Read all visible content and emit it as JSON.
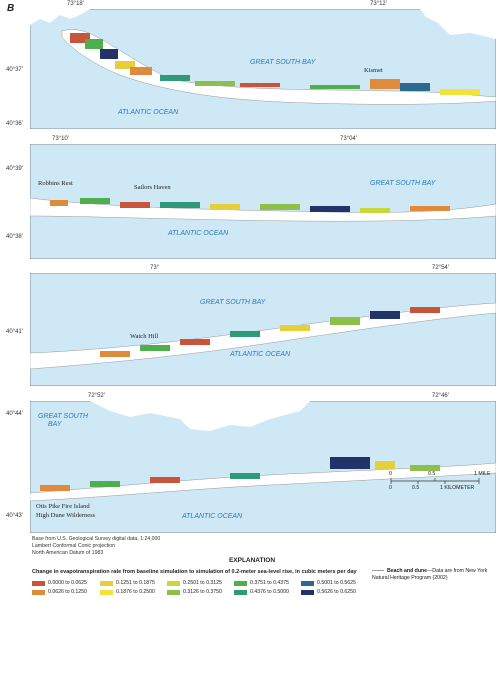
{
  "panel_letter": "B",
  "maps": [
    {
      "top_ticks": [
        "73°18'",
        "73°12'"
      ],
      "left_ticks": [
        "40°37'",
        "40°36'"
      ],
      "water_labels": [
        "GREAT SOUTH BAY",
        "ATLANTIC OCEAN"
      ],
      "places": [
        "Kismet"
      ]
    },
    {
      "top_ticks": [
        "73°10'",
        "73°04'"
      ],
      "left_ticks": [
        "40°39'",
        "40°38'"
      ],
      "water_labels": [
        "GREAT SOUTH BAY",
        "ATLANTIC OCEAN"
      ],
      "places": [
        "Robbins Rest",
        "Sailors Haven"
      ]
    },
    {
      "top_ticks": [
        "73°",
        "72°54'"
      ],
      "left_ticks": [
        "40°41'"
      ],
      "water_labels": [
        "GREAT SOUTH BAY",
        "ATLANTIC OCEAN"
      ],
      "places": [
        "Watch Hill"
      ]
    },
    {
      "top_ticks": [
        "72°52'",
        "72°46'"
      ],
      "left_ticks": [
        "40°44'",
        "40°43'"
      ],
      "water_labels": [
        "GREAT SOUTH",
        "BAY",
        "ATLANTIC OCEAN"
      ],
      "places": [
        "Otis Pike Fire Island",
        "High Dune Wilderness"
      ]
    }
  ],
  "credits": [
    "Base from U.S. Geological Survey digital data, 1:24,000",
    "Lambert Conformal Conic projection",
    "North American Datum of 1983"
  ],
  "scale_bar": {
    "mile_ticks": [
      "0",
      "0.5",
      "1 MILE"
    ],
    "km_ticks": [
      "0",
      "0.5",
      "1 KILOMETER"
    ]
  },
  "legend": {
    "title": "EXPLANATION",
    "heading": "Change in evapotranspiration rate from baseline simulation to simulation of 0.2-meter sea-level rise, in cubic meters per day",
    "classes": [
      {
        "label": "0.0000 to 0.0625",
        "color": "#c8553a"
      },
      {
        "label": "0.0626 to 0.1250",
        "color": "#e08a3c"
      },
      {
        "label": "0.1251 to 0.1875",
        "color": "#e6cf3a"
      },
      {
        "label": "0.1876 to 0.2500",
        "color": "#f0e43c"
      },
      {
        "label": "0.2501 to 0.3125",
        "color": "#c8d83c"
      },
      {
        "label": "0.3126 to 0.3750",
        "color": "#8cc04a"
      },
      {
        "label": "0.3751 to 0.4375",
        "color": "#4fae4e"
      },
      {
        "label": "0.4376 to 0.5000",
        "color": "#2e9a78"
      },
      {
        "label": "0.5001 to 0.5625",
        "color": "#2b6a8e"
      },
      {
        "label": "0.5626 to 0.6250",
        "color": "#22336a"
      }
    ],
    "beach_label": "Beach and dune",
    "beach_text": "—Data are from New York Natural Heritage Program (2002)"
  },
  "colors": {
    "water": "#cfe8f6",
    "land": "#ffffff",
    "water_label": "#2a7ab8"
  }
}
